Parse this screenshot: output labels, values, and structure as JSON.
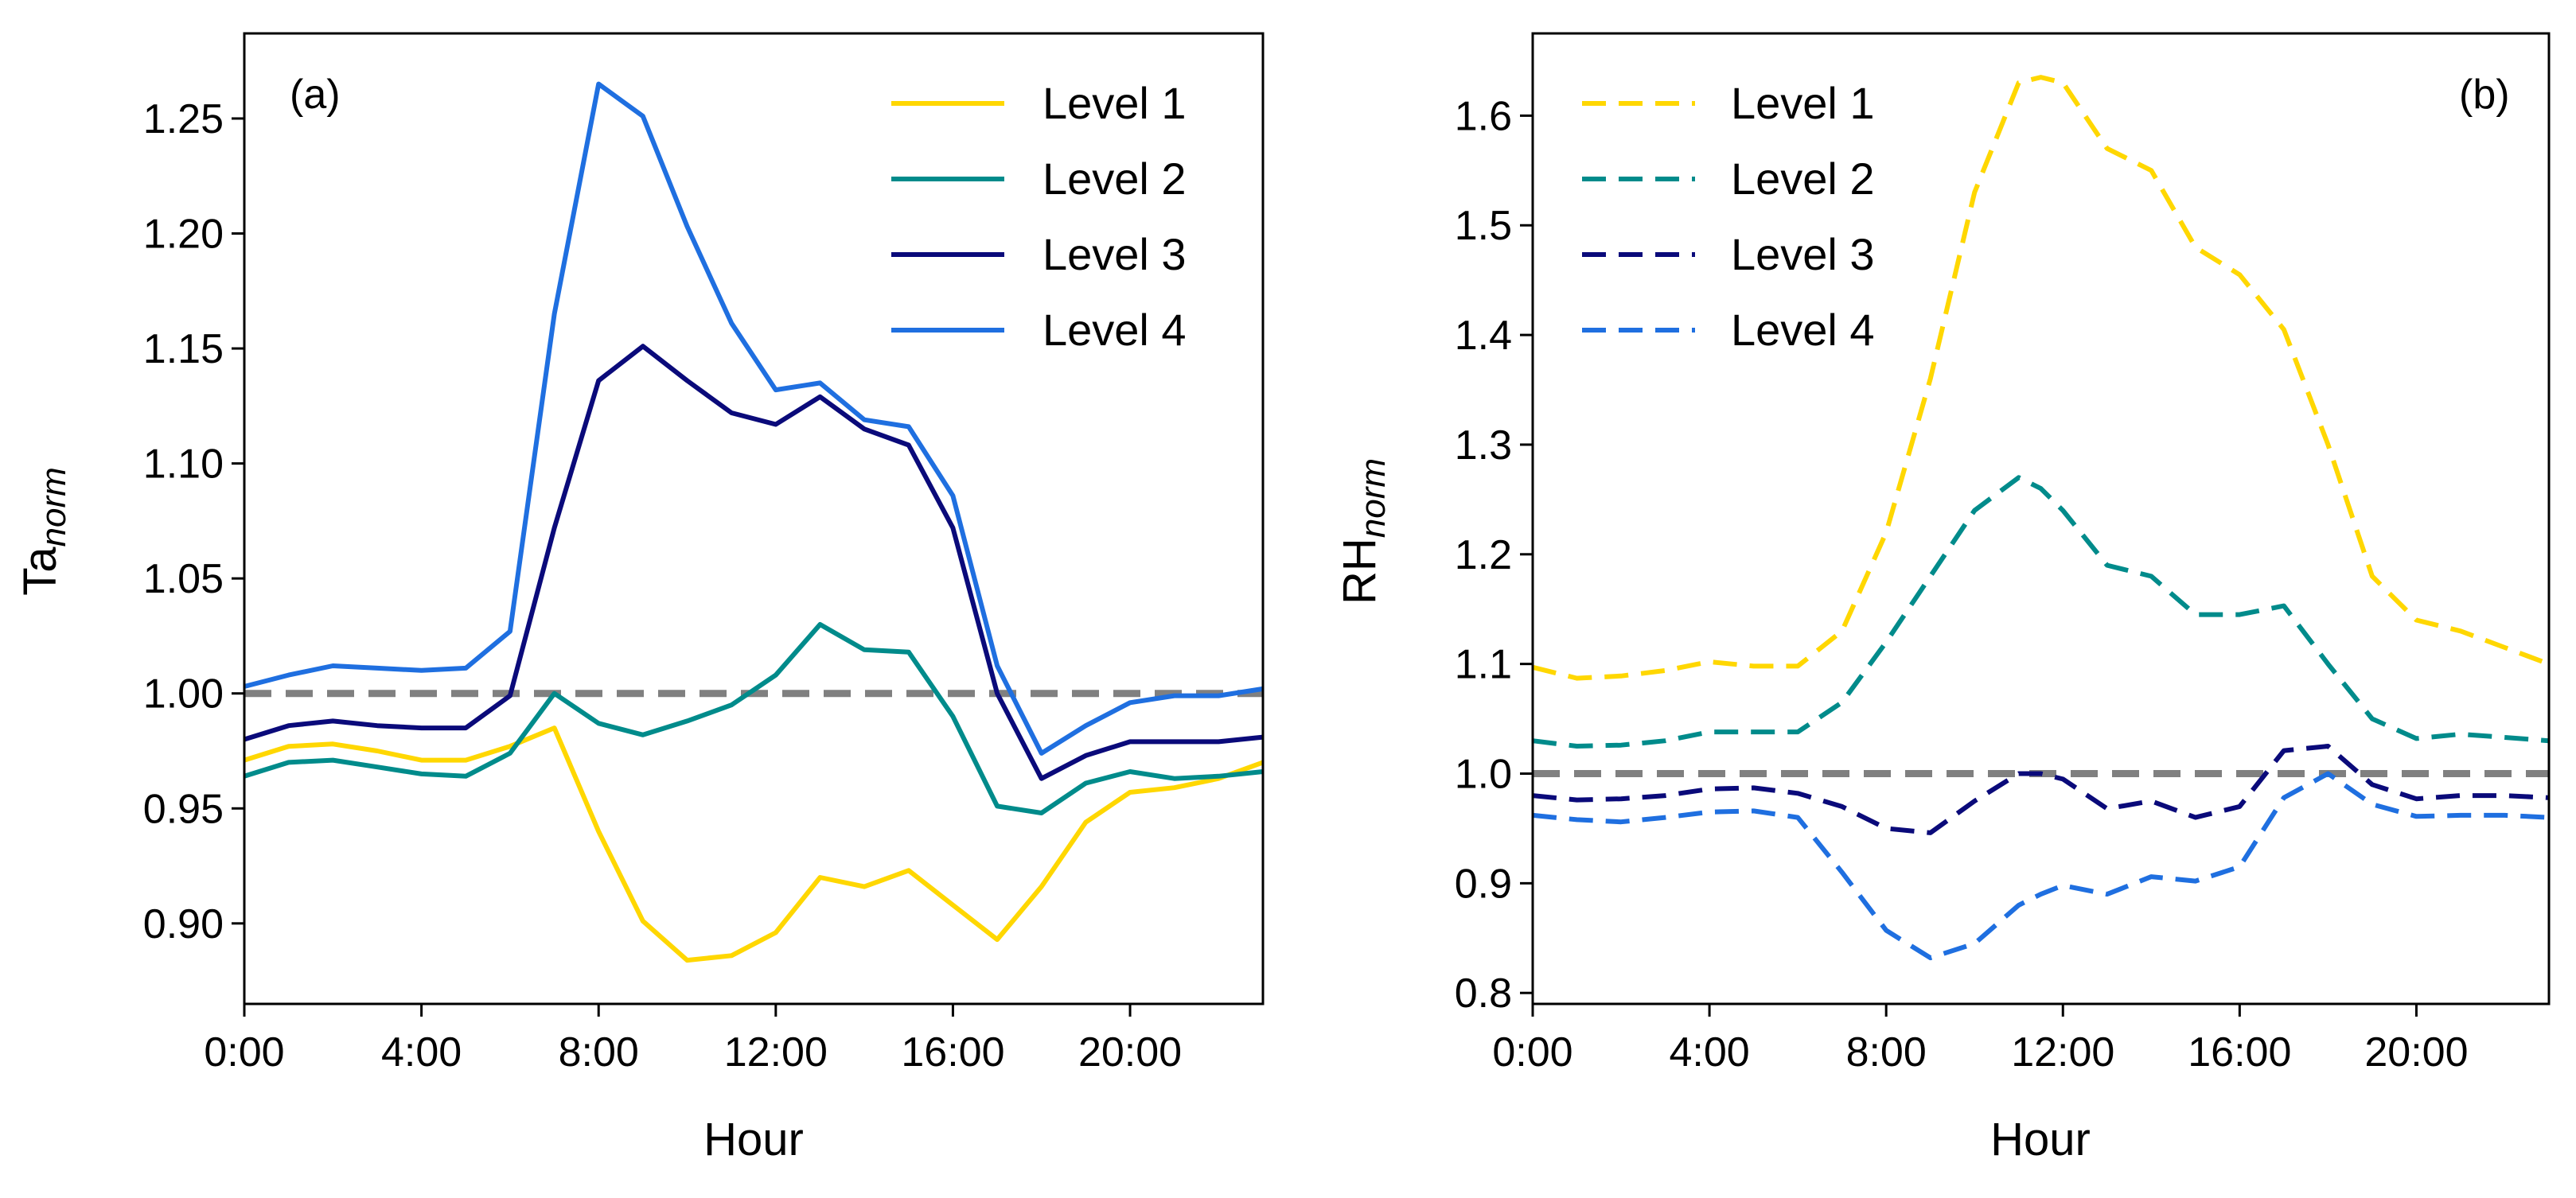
{
  "chart_data": [
    {
      "type": "line",
      "panel_label": "(a)",
      "xlabel": "Hour",
      "ylabel_main": "Ta",
      "ylabel_sub": "norm",
      "x": [
        0,
        1,
        2,
        3,
        4,
        5,
        6,
        7,
        8,
        9,
        10,
        11,
        12,
        13,
        14,
        15,
        16,
        17,
        18,
        19,
        20,
        21,
        22,
        23
      ],
      "xlim": [
        0,
        23
      ],
      "xticks": [
        0,
        4,
        8,
        12,
        16,
        20
      ],
      "xtick_labels": [
        "0:00",
        "4:00",
        "8:00",
        "12:00",
        "16:00",
        "20:00"
      ],
      "ylim": [
        0.865,
        1.287
      ],
      "yticks": [
        0.9,
        0.95,
        1.0,
        1.05,
        1.1,
        1.15,
        1.2,
        1.25
      ],
      "ytick_labels": [
        "0.90",
        "0.95",
        "1.00",
        "1.05",
        "1.10",
        "1.15",
        "1.20",
        "1.25"
      ],
      "reference_line": 1.0,
      "legend_position": "top-right",
      "series": [
        {
          "name": "Level 1",
          "color": "#FFD700",
          "dashed": false,
          "values": [
            0.971,
            0.977,
            0.978,
            0.975,
            0.971,
            0.971,
            0.977,
            0.985,
            0.94,
            0.901,
            0.884,
            0.886,
            0.896,
            0.92,
            0.916,
            0.923,
            0.908,
            0.893,
            0.916,
            0.944,
            0.957,
            0.959,
            0.963,
            0.97
          ]
        },
        {
          "name": "Level 2",
          "color": "#008B8B",
          "dashed": false,
          "values": [
            0.964,
            0.97,
            0.971,
            0.968,
            0.965,
            0.964,
            0.974,
            1.0,
            0.987,
            0.982,
            0.988,
            0.995,
            1.008,
            1.03,
            1.019,
            1.018,
            0.99,
            0.951,
            0.948,
            0.961,
            0.966,
            0.963,
            0.964,
            0.966
          ]
        },
        {
          "name": "Level 3",
          "color": "#0A0A7A",
          "dashed": false,
          "values": [
            0.98,
            0.986,
            0.988,
            0.986,
            0.985,
            0.985,
            0.999,
            1.072,
            1.136,
            1.151,
            1.136,
            1.122,
            1.117,
            1.129,
            1.115,
            1.108,
            1.072,
            1.0,
            0.963,
            0.973,
            0.979,
            0.979,
            0.979,
            0.981
          ]
        },
        {
          "name": "Level 4",
          "color": "#1F6FE0",
          "dashed": false,
          "values": [
            1.003,
            1.008,
            1.012,
            1.011,
            1.01,
            1.011,
            1.027,
            1.165,
            1.265,
            1.251,
            1.203,
            1.161,
            1.132,
            1.135,
            1.119,
            1.116,
            1.086,
            1.012,
            0.974,
            0.986,
            0.996,
            0.999,
            0.999,
            1.002
          ]
        }
      ]
    },
    {
      "type": "line",
      "panel_label": "(b)",
      "xlabel": "Hour",
      "ylabel_main": "RH",
      "ylabel_sub": "norm",
      "x": [
        0,
        1,
        2,
        3,
        4,
        5,
        6,
        7,
        8,
        9,
        10,
        11,
        11.5,
        12,
        13,
        14,
        15,
        16,
        17,
        18,
        19,
        20,
        21,
        22,
        23
      ],
      "xlim": [
        0,
        23
      ],
      "xticks": [
        0,
        4,
        8,
        12,
        16,
        20
      ],
      "xtick_labels": [
        "0:00",
        "4:00",
        "8:00",
        "12:00",
        "16:00",
        "20:00"
      ],
      "ylim": [
        0.79,
        1.675
      ],
      "yticks": [
        0.8,
        0.9,
        1.0,
        1.1,
        1.2,
        1.3,
        1.4,
        1.5,
        1.6
      ],
      "ytick_labels": [
        "0.8",
        "0.9",
        "1.0",
        "1.1",
        "1.2",
        "1.3",
        "1.4",
        "1.5",
        "1.6"
      ],
      "reference_line": 1.0,
      "legend_position": "top-left",
      "series": [
        {
          "name": "Level 1",
          "color": "#FFD700",
          "dashed": true,
          "values": [
            1.097,
            1.087,
            1.089,
            1.094,
            1.102,
            1.098,
            1.098,
            1.13,
            1.22,
            1.36,
            1.53,
            1.63,
            1.635,
            1.63,
            1.57,
            1.55,
            1.48,
            1.455,
            1.405,
            1.3,
            1.18,
            1.14,
            1.13,
            1.115,
            1.1
          ]
        },
        {
          "name": "Level 2",
          "color": "#008B8B",
          "dashed": true,
          "values": [
            1.03,
            1.025,
            1.026,
            1.03,
            1.038,
            1.038,
            1.038,
            1.065,
            1.12,
            1.18,
            1.24,
            1.27,
            1.26,
            1.24,
            1.19,
            1.18,
            1.145,
            1.145,
            1.153,
            1.1,
            1.05,
            1.032,
            1.036,
            1.033,
            1.03
          ]
        },
        {
          "name": "Level 3",
          "color": "#0A0A7A",
          "dashed": true,
          "values": [
            0.98,
            0.976,
            0.977,
            0.98,
            0.986,
            0.987,
            0.982,
            0.97,
            0.95,
            0.946,
            0.975,
            1.0,
            1.0,
            0.995,
            0.968,
            0.975,
            0.96,
            0.97,
            1.021,
            1.025,
            0.99,
            0.977,
            0.98,
            0.98,
            0.978
          ]
        },
        {
          "name": "Level 4",
          "color": "#1F6FE0",
          "dashed": true,
          "values": [
            0.962,
            0.958,
            0.956,
            0.96,
            0.965,
            0.966,
            0.96,
            0.91,
            0.857,
            0.832,
            0.845,
            0.88,
            0.89,
            0.898,
            0.89,
            0.906,
            0.902,
            0.915,
            0.978,
            1.0,
            0.972,
            0.961,
            0.962,
            0.962,
            0.96
          ]
        }
      ]
    }
  ]
}
